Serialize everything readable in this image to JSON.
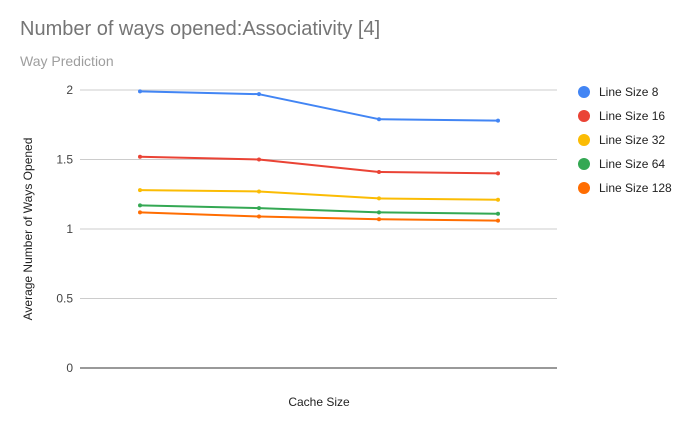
{
  "chart_data": {
    "type": "line",
    "title": "Number of ways opened:Associativity [4]",
    "subtitle": "Way Prediction",
    "xlabel": "Cache Size",
    "ylabel": "Average Number of Ways Opened",
    "ylim": [
      0,
      2
    ],
    "yticks": [
      "0",
      "0.5",
      "1",
      "1.5",
      "2"
    ],
    "x": [
      1,
      2,
      3,
      4
    ],
    "grid": true,
    "legend_position": "right",
    "series": [
      {
        "name": "Line Size 8",
        "color": "#4285f4",
        "values": [
          1.99,
          1.97,
          1.79,
          1.78
        ]
      },
      {
        "name": "Line Size 16",
        "color": "#ea4335",
        "values": [
          1.52,
          1.5,
          1.41,
          1.4
        ]
      },
      {
        "name": "Line Size 32",
        "color": "#fbbc04",
        "values": [
          1.28,
          1.27,
          1.22,
          1.21
        ]
      },
      {
        "name": "Line Size 64",
        "color": "#34a853",
        "values": [
          1.17,
          1.15,
          1.12,
          1.11
        ]
      },
      {
        "name": "Line Size 128",
        "color": "#ff6d01",
        "values": [
          1.12,
          1.09,
          1.07,
          1.06
        ]
      }
    ]
  }
}
